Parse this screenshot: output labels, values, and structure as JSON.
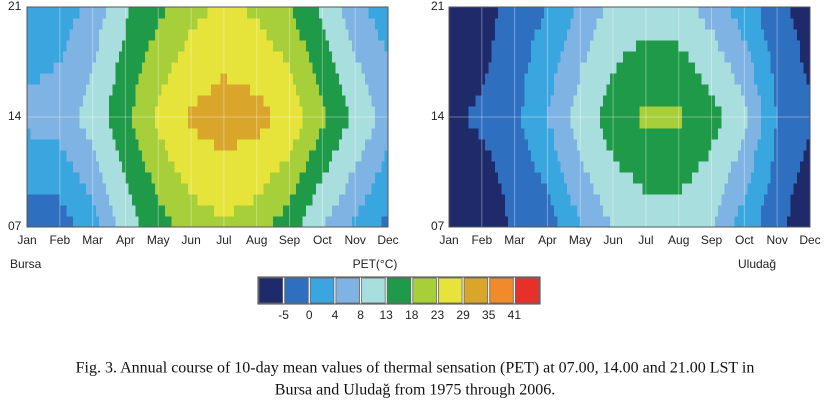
{
  "chart_data": [
    {
      "type": "contour",
      "name": "Bursa",
      "categories": [
        "Jan",
        "Feb",
        "Mar",
        "Apr",
        "May",
        "Jun",
        "Jul",
        "Aug",
        "Sep",
        "Oct",
        "Nov",
        "Dec"
      ],
      "y": [
        7,
        14,
        21
      ],
      "ylim": [
        7,
        21
      ],
      "yticks": [
        {
          "value": 7,
          "label": "07"
        },
        14,
        21
      ],
      "z": [
        [
          -2,
          -2,
          2,
          10,
          16,
          20,
          22,
          20,
          15,
          8,
          3,
          -1
        ],
        [
          5,
          6,
          10,
          17,
          24,
          30,
          32,
          31,
          27,
          19,
          12,
          6
        ],
        [
          1,
          2,
          5,
          12,
          17,
          21,
          24,
          22,
          18,
          12,
          5,
          2
        ]
      ]
    },
    {
      "type": "contour",
      "name": "Uludağ",
      "categories": [
        "Jan",
        "Feb",
        "Mar",
        "Apr",
        "May",
        "Jun",
        "Jul",
        "Aug",
        "Sep",
        "Oct",
        "Nov",
        "Dec"
      ],
      "y": [
        7,
        14,
        21
      ],
      "ylim": [
        7,
        21
      ],
      "yticks": [
        {
          "value": 7,
          "label": "07"
        },
        14,
        21
      ],
      "z": [
        [
          -10,
          -10,
          -4,
          -2,
          4,
          8,
          10,
          10,
          8,
          2,
          -3,
          -10
        ],
        [
          -6,
          -4,
          -1,
          4,
          10,
          16,
          19,
          19,
          15,
          9,
          0,
          -4
        ],
        [
          -8,
          -8,
          -2,
          0,
          5,
          9,
          11,
          10,
          6,
          2,
          -3,
          -8
        ]
      ]
    }
  ],
  "colorbar": {
    "title": "PET(°C)",
    "thresholds": [
      -5,
      0,
      4,
      8,
      13,
      18,
      23,
      29,
      35,
      41
    ],
    "colors": [
      "#1f2a6b",
      "#2e6fc0",
      "#3aa6e0",
      "#7fb3e3",
      "#a9dede",
      "#1f9a48",
      "#a6cf3a",
      "#e6e43a",
      "#d9a52a",
      "#f08a2a",
      "#e8302a"
    ]
  },
  "caption": [
    "Fig. 3. Annual course of 10-day mean values of thermal sensation (PET) at 07.00, 14.00 and 21.00 LST in",
    "Bursa and Uludağ from 1975 through 2006."
  ]
}
